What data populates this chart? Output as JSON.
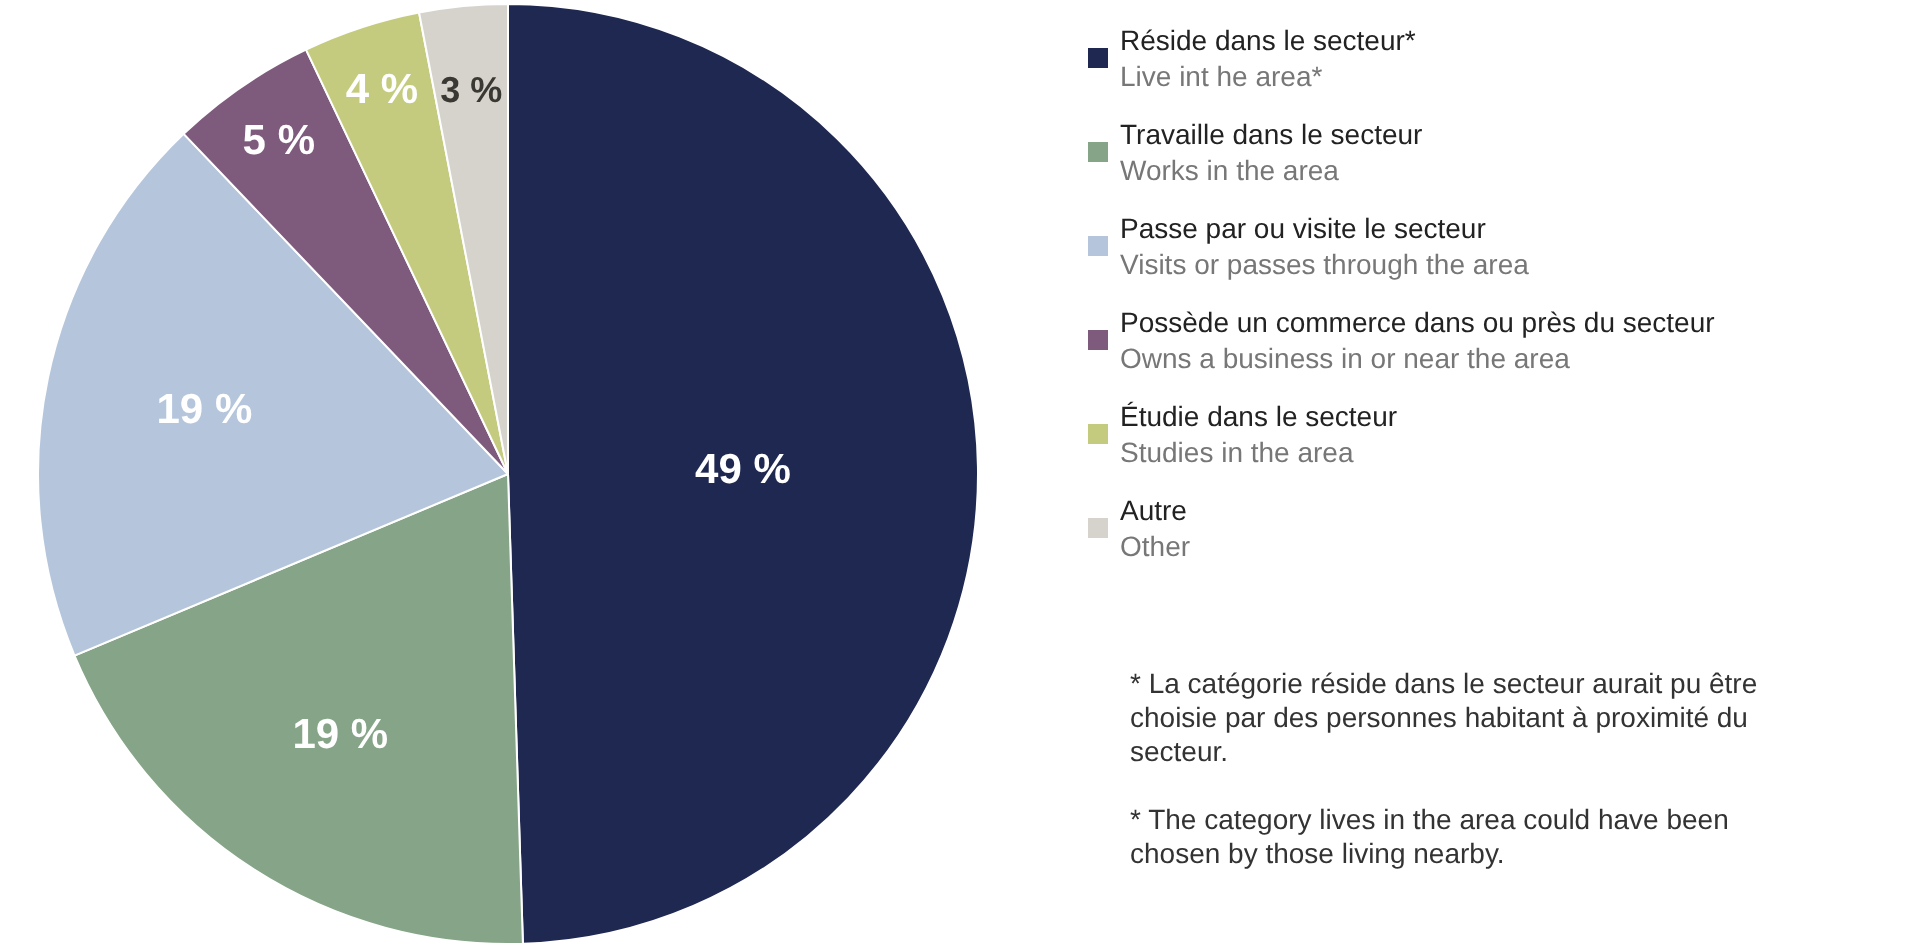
{
  "chart_data": {
    "type": "pie",
    "categories": [
      "Réside dans le secteur*\nLive int he area*",
      "Travaille dans le secteur\nWorks in the area",
      "Passe par ou visite le secteur\nVisits or passes through the area",
      "Possède un commerce dans ou près du secteur\nOwns a business in or near the area",
      "Étudie dans le secteur\nStudies in the area",
      "Autre\nOther"
    ],
    "values": [
      49,
      19,
      19,
      5,
      4,
      3
    ],
    "colors": [
      "#1f2850",
      "#86a487",
      "#b5c6dc",
      "#7e5a7c",
      "#c5cb7e",
      "#d6d3cc"
    ],
    "value_labels": [
      "49 %",
      "19 %",
      "19 %",
      "5 %",
      "4 %",
      "3 %"
    ],
    "legend": "right",
    "annotations": [
      "* La catégorie réside dans le secteur aurait pu être choisie par des personnes habitant à proximité du secteur.",
      "* The category lives in the area could have been chosen by those living nearby."
    ]
  }
}
